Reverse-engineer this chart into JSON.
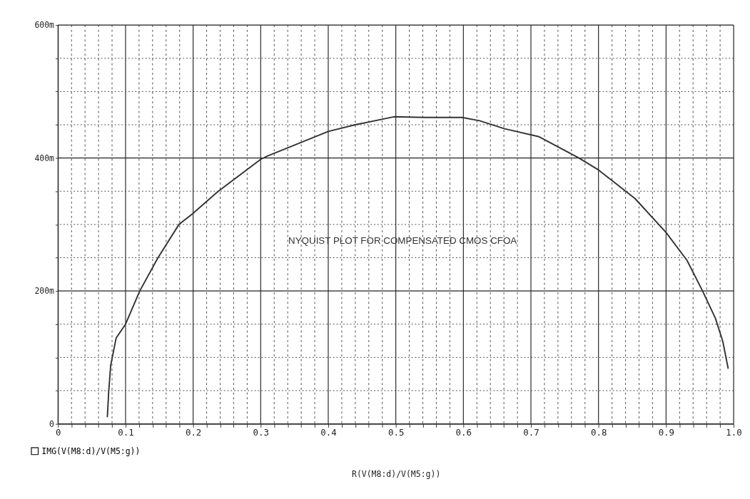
{
  "chart_data": {
    "type": "line",
    "annotations": [
      "NYQUIST PLOT FOR COMPENSATED CMOS CFOA"
    ],
    "xlabel": "R(V(M8:d)/V(M5:g))",
    "x": [
      0.073,
      0.075,
      0.078,
      0.086,
      0.1,
      0.121,
      0.148,
      0.179,
      0.199,
      0.236,
      0.3,
      0.31,
      0.4,
      0.44,
      0.497,
      0.544,
      0.598,
      0.624,
      0.661,
      0.712,
      0.771,
      0.8,
      0.854,
      0.9,
      0.931,
      0.954,
      0.973,
      0.984,
      0.992
    ],
    "series": [
      {
        "name": "IMG(V(M8:d)/V(M5:g))",
        "color": "#333333",
        "values": [
          10,
          48,
          88,
          129,
          150,
          200,
          250,
          300,
          316,
          349,
          398,
          403,
          440,
          450,
          462,
          461,
          461,
          456,
          444,
          432,
          400,
          382,
          339,
          288,
          246,
          200,
          159,
          124,
          83
        ]
      }
    ],
    "xlim": [
      0,
      1.0
    ],
    "ylim": [
      0,
      600
    ],
    "xticks": [
      0,
      {
        "value": 0.02,
        "label": null
      },
      {
        "value": 0.04,
        "label": null
      },
      {
        "value": 0.06,
        "label": null
      },
      {
        "value": 0.08,
        "label": null
      },
      0.1,
      {
        "value": 0.12,
        "label": null
      },
      {
        "value": 0.14,
        "label": null
      },
      {
        "value": 0.16,
        "label": null
      },
      {
        "value": 0.18,
        "label": null
      },
      0.2,
      {
        "value": 0.22,
        "label": null
      },
      {
        "value": 0.24,
        "label": null
      },
      {
        "value": 0.26,
        "label": null
      },
      {
        "value": 0.28,
        "label": null
      },
      0.3,
      {
        "value": 0.32,
        "label": null
      },
      {
        "value": 0.34,
        "label": null
      },
      {
        "value": 0.36,
        "label": null
      },
      {
        "value": 0.38,
        "label": null
      },
      0.4,
      {
        "value": 0.42,
        "label": null
      },
      {
        "value": 0.44,
        "label": null
      },
      {
        "value": 0.46,
        "label": null
      },
      {
        "value": 0.48,
        "label": null
      },
      0.5,
      {
        "value": 0.52,
        "label": null
      },
      {
        "value": 0.54,
        "label": null
      },
      {
        "value": 0.56,
        "label": null
      },
      {
        "value": 0.58,
        "label": null
      },
      0.6,
      {
        "value": 0.62,
        "label": null
      },
      {
        "value": 0.64,
        "label": null
      },
      {
        "value": 0.66,
        "label": null
      },
      {
        "value": 0.68,
        "label": null
      },
      0.7,
      {
        "value": 0.72,
        "label": null
      },
      {
        "value": 0.74,
        "label": null
      },
      {
        "value": 0.76,
        "label": null
      },
      {
        "value": 0.78,
        "label": null
      },
      0.8,
      {
        "value": 0.82,
        "label": null
      },
      {
        "value": 0.84,
        "label": null
      },
      {
        "value": 0.86,
        "label": null
      },
      {
        "value": 0.88,
        "label": null
      },
      0.9,
      {
        "value": 0.92,
        "label": null
      },
      {
        "value": 0.94,
        "label": null
      },
      {
        "value": 0.96,
        "label": null
      },
      {
        "value": 0.98,
        "label": null
      },
      {
        "value": 1.0,
        "label": "1.0"
      }
    ],
    "yticks": [
      0,
      {
        "value": 50,
        "label": null
      },
      {
        "value": 100,
        "label": null
      },
      {
        "value": 150,
        "label": null
      },
      {
        "value": 200,
        "label": "200m"
      },
      {
        "value": 250,
        "label": null
      },
      {
        "value": 300,
        "label": null
      },
      {
        "value": 350,
        "label": null
      },
      {
        "value": 400,
        "label": "400m"
      },
      {
        "value": 450,
        "label": null
      },
      {
        "value": 500,
        "label": null
      },
      {
        "value": 550,
        "label": null
      },
      {
        "value": 600,
        "label": "600m"
      }
    ],
    "grid": true,
    "legend": "bottom left",
    "line_style": "solid"
  }
}
